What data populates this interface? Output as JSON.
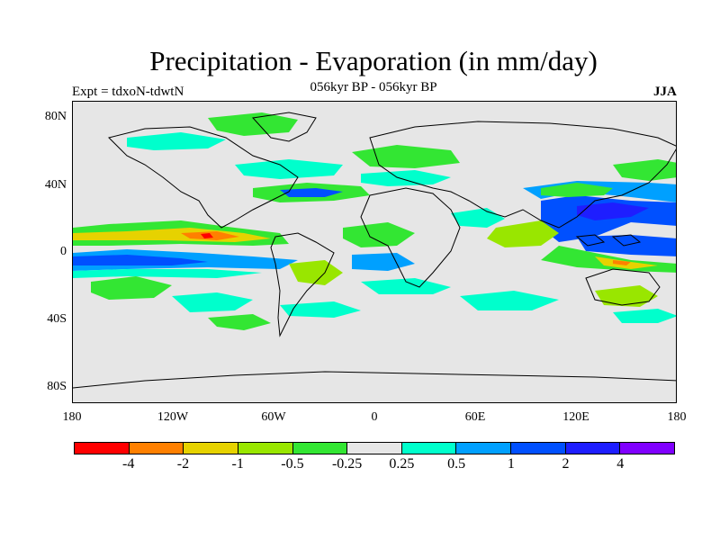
{
  "title": "Precipitation - Evaporation (in mm/day)",
  "subtitle": "056kyr BP - 056kyr BP",
  "expt_label": "Expt = tdxoN-tdwtN",
  "season": "JJA",
  "map": {
    "projection": "cylindrical equidistant",
    "background_color": "#e6e6e6",
    "lat_range": [
      -90,
      90
    ],
    "lon_range": [
      -180,
      180
    ],
    "lat_ticks": [
      "80N",
      "40N",
      "0",
      "40S",
      "80S"
    ],
    "lon_ticks": [
      "180",
      "120W",
      "60W",
      "0",
      "60E",
      "120E",
      "180"
    ]
  },
  "colorbar": {
    "colors": [
      "#ff0000",
      "#ff8000",
      "#e6d200",
      "#99e600",
      "#33e633",
      "#e6e6e6",
      "#00ffcc",
      "#00a0ff",
      "#0050ff",
      "#1e1eff",
      "#8000ff"
    ],
    "labels": [
      "-4",
      "-2",
      "-1",
      "-0.5",
      "-0.25",
      "0.25",
      "0.5",
      "1",
      "2",
      "4"
    ]
  }
}
